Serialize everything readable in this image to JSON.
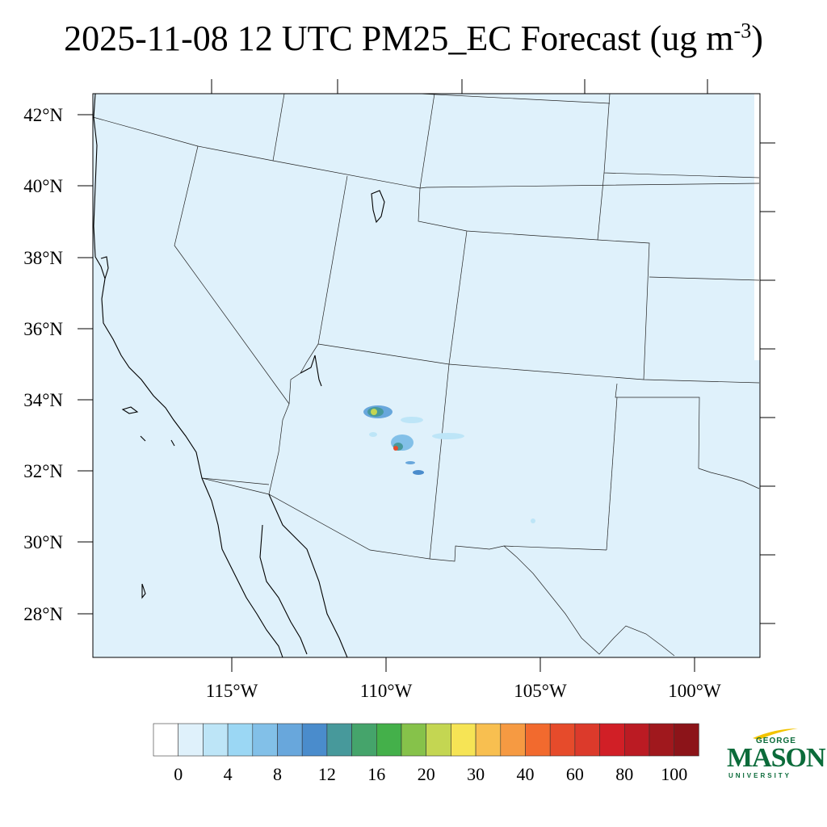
{
  "title": {
    "main": "2025-11-08 12 UTC PM25_EC Forecast (ug m",
    "exponent": "-3",
    "close": ")"
  },
  "map": {
    "lat_labels": [
      "42°N",
      "40°N",
      "38°N",
      "36°N",
      "34°N",
      "32°N",
      "30°N",
      "28°N"
    ],
    "lon_labels": [
      "115°W",
      "110°W",
      "105°W",
      "100°W"
    ],
    "background_color": "#dff1fb"
  },
  "colorbar": {
    "labels": [
      "0",
      "4",
      "8",
      "12",
      "16",
      "20",
      "30",
      "40",
      "60",
      "80",
      "100"
    ],
    "colors": [
      "#ffffff",
      "#dff1fb",
      "#bde5f7",
      "#9bd7f4",
      "#82c0e8",
      "#68a7dc",
      "#4a8ccc",
      "#47999b",
      "#45a46b",
      "#44b04a",
      "#86c24a",
      "#c4d652",
      "#f6e455",
      "#f8bf50",
      "#f69a42",
      "#f26a2e",
      "#e64b2b",
      "#dc3a2b",
      "#d11f26",
      "#bb1b23",
      "#a0181d",
      "#8c1419"
    ]
  },
  "logo": {
    "line1": "GEORGE",
    "line2": "MASON",
    "line3": "UNIVERSITY"
  }
}
